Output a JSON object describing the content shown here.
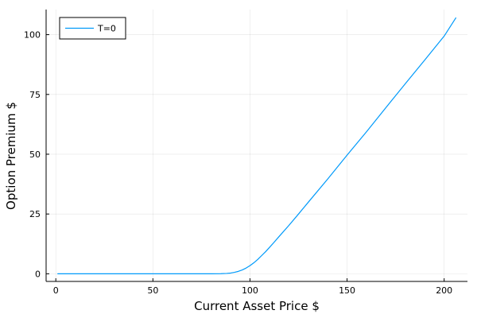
{
  "chart_data": {
    "type": "line",
    "title": "",
    "xlabel": "Current Asset Price $",
    "ylabel": "Option Premium $",
    "xlim": [
      -5,
      212
    ],
    "ylim": [
      -3.2,
      110.5
    ],
    "xticks": [
      0,
      50,
      100,
      150,
      200
    ],
    "yticks": [
      0,
      25,
      50,
      75,
      100
    ],
    "grid": true,
    "legend": {
      "position": "top-left",
      "entries": [
        "T=0"
      ]
    },
    "series": [
      {
        "name": "T=0",
        "color": "#009AFA",
        "points": [
          [
            1,
            0
          ],
          [
            20,
            0
          ],
          [
            40,
            0
          ],
          [
            60,
            0
          ],
          [
            80,
            0
          ],
          [
            85,
            0.05
          ],
          [
            88,
            0.15
          ],
          [
            90,
            0.3
          ],
          [
            92,
            0.6
          ],
          [
            94,
            1.0
          ],
          [
            96,
            1.6
          ],
          [
            98,
            2.4
          ],
          [
            100,
            3.4
          ],
          [
            102,
            4.6
          ],
          [
            104,
            6.0
          ],
          [
            106,
            7.6
          ],
          [
            108,
            9.2
          ],
          [
            110,
            11.0
          ],
          [
            112,
            12.8
          ],
          [
            115,
            15.6
          ],
          [
            120,
            20.2
          ],
          [
            125,
            25.0
          ],
          [
            130,
            29.9
          ],
          [
            140,
            39.6
          ],
          [
            150,
            49.6
          ],
          [
            160,
            59.4
          ],
          [
            170,
            69.5
          ],
          [
            180,
            79.5
          ],
          [
            190,
            89.4
          ],
          [
            200,
            99.4
          ],
          [
            206,
            107.0
          ]
        ]
      }
    ]
  }
}
